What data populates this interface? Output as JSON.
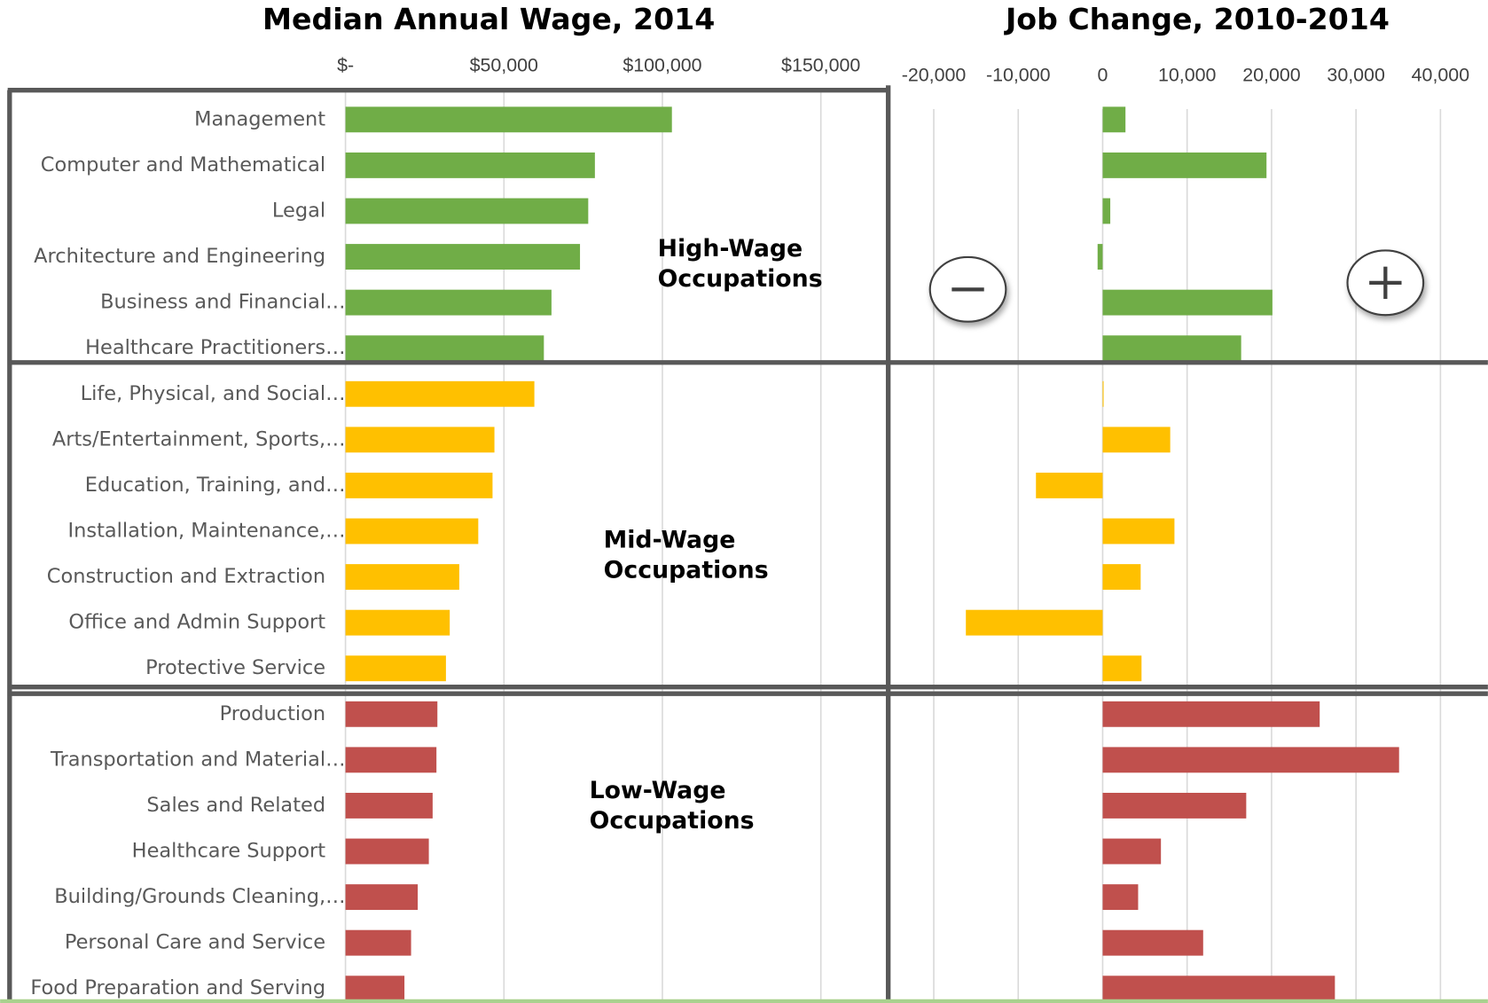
{
  "chart_data": [
    {
      "type": "bar",
      "orientation": "horizontal",
      "title": "Median Annual Wage, 2014",
      "categories": [
        "Management",
        "Computer and Mathematical",
        "Legal",
        "Architecture and Engineering",
        "Business and Financial…",
        "Healthcare Practitioners…",
        "Life, Physical, and Social…",
        "Arts/Entertainment, Sports,…",
        "Education, Training, and…",
        "Installation, Maintenance,…",
        "Construction and Extraction",
        "Office and Admin Support",
        "Protective Service",
        "Production",
        "Transportation and Material…",
        "Sales and Related",
        "Healthcare Support",
        "Building/Grounds Cleaning,…",
        "Personal Care and Service",
        "Food Preparation and Serving"
      ],
      "values": [
        103000,
        78700,
        76600,
        74000,
        65000,
        62600,
        59600,
        47000,
        46400,
        41900,
        35900,
        32900,
        31700,
        29000,
        28700,
        27500,
        26300,
        22800,
        20700,
        18600
      ],
      "colors": [
        "#70ad47",
        "#70ad47",
        "#70ad47",
        "#70ad47",
        "#70ad47",
        "#70ad47",
        "#ffc000",
        "#ffc000",
        "#ffc000",
        "#ffc000",
        "#ffc000",
        "#ffc000",
        "#ffc000",
        "#c0504d",
        "#c0504d",
        "#c0504d",
        "#c0504d",
        "#c0504d",
        "#c0504d",
        "#c0504d"
      ],
      "xlim": [
        0,
        170000
      ],
      "xticks": [
        {
          "value": 0,
          "label": "$-"
        },
        {
          "value": 50000,
          "label": "$50,000"
        },
        {
          "value": 100000,
          "label": "$100,000"
        },
        {
          "value": 150000,
          "label": "$150,000"
        }
      ],
      "grid": true,
      "annotations": [
        [
          "High-Wage",
          "Occupations"
        ],
        [
          "Mid-Wage",
          "Occupations"
        ],
        [
          "Low-Wage",
          "Occupations"
        ]
      ]
    },
    {
      "type": "bar",
      "orientation": "horizontal",
      "title": "Job Change, 2010-2014",
      "values": [
        2700,
        19400,
        900,
        -600,
        20100,
        16400,
        100,
        8000,
        -7900,
        8500,
        4500,
        -16200,
        4600,
        25700,
        35100,
        17000,
        6900,
        4200,
        11900,
        27500
      ],
      "colors": [
        "#70ad47",
        "#70ad47",
        "#70ad47",
        "#70ad47",
        "#70ad47",
        "#70ad47",
        "#ffc000",
        "#ffc000",
        "#ffc000",
        "#ffc000",
        "#ffc000",
        "#ffc000",
        "#ffc000",
        "#c0504d",
        "#c0504d",
        "#c0504d",
        "#c0504d",
        "#c0504d",
        "#c0504d",
        "#c0504d"
      ],
      "xlim": [
        -25000,
        45000
      ],
      "xticks": [
        {
          "value": -20000,
          "label": "-20,000"
        },
        {
          "value": -10000,
          "label": "-10,000"
        },
        0,
        {
          "value": 10000,
          "label": "10,000"
        },
        {
          "value": 20000,
          "label": "20,000"
        },
        {
          "value": 30000,
          "label": "30,000"
        },
        {
          "value": 40000,
          "label": "40,000"
        }
      ],
      "grid": true
    }
  ]
}
